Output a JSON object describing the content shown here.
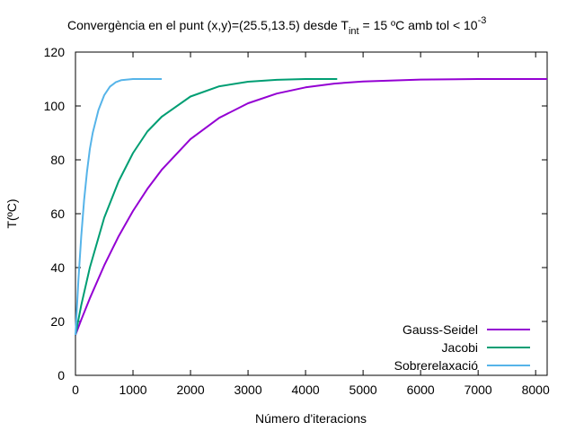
{
  "chart_data": {
    "type": "line",
    "title": {
      "main": "Convergència en el punt (x,y)=(25.5,13.5) desde T",
      "subscript": "int",
      "after": " = 15 ºC amb tol < 10",
      "superscript": "-3"
    },
    "xlabel": "Número d'iteracions",
    "ylabel": "T(ºC)",
    "xlim": [
      0,
      8200
    ],
    "ylim": [
      0,
      120
    ],
    "xticks": [
      0,
      1000,
      2000,
      3000,
      4000,
      5000,
      6000,
      7000,
      8000
    ],
    "yticks": [
      0,
      20,
      40,
      60,
      80,
      100,
      120
    ],
    "grid": false,
    "legend_position": "bottom-right",
    "series": [
      {
        "name": "Gauss-Seidel",
        "color": "#9400d3",
        "x": [
          0,
          100,
          250,
          500,
          750,
          1000,
          1250,
          1500,
          2000,
          2500,
          3000,
          3500,
          4000,
          4500,
          5000,
          6000,
          7000,
          8200
        ],
        "y": [
          15,
          20.6,
          28.6,
          40.8,
          51.6,
          61.0,
          69.2,
          76.3,
          87.7,
          95.6,
          101.0,
          104.6,
          106.9,
          108.3,
          109.1,
          109.8,
          110.0,
          110.0
        ]
      },
      {
        "name": "Jacobi",
        "color": "#009e73",
        "x": [
          0,
          100,
          250,
          500,
          750,
          1000,
          1250,
          1500,
          2000,
          2500,
          3000,
          3500,
          4000,
          4550
        ],
        "y": [
          15,
          26.0,
          40.0,
          58.5,
          72.0,
          82.5,
          90.5,
          96.0,
          103.5,
          107.3,
          109.0,
          109.7,
          110.0,
          110.0
        ]
      },
      {
        "name": "Sobrerelaxació",
        "color": "#56b4e9",
        "x": [
          0,
          50,
          100,
          150,
          200,
          250,
          300,
          400,
          500,
          600,
          700,
          800,
          1000,
          1500
        ],
        "y": [
          15,
          35.0,
          51.5,
          65.0,
          75.5,
          84.0,
          90.0,
          98.5,
          104.0,
          107.2,
          108.8,
          109.6,
          110.0,
          110.0
        ]
      }
    ]
  }
}
